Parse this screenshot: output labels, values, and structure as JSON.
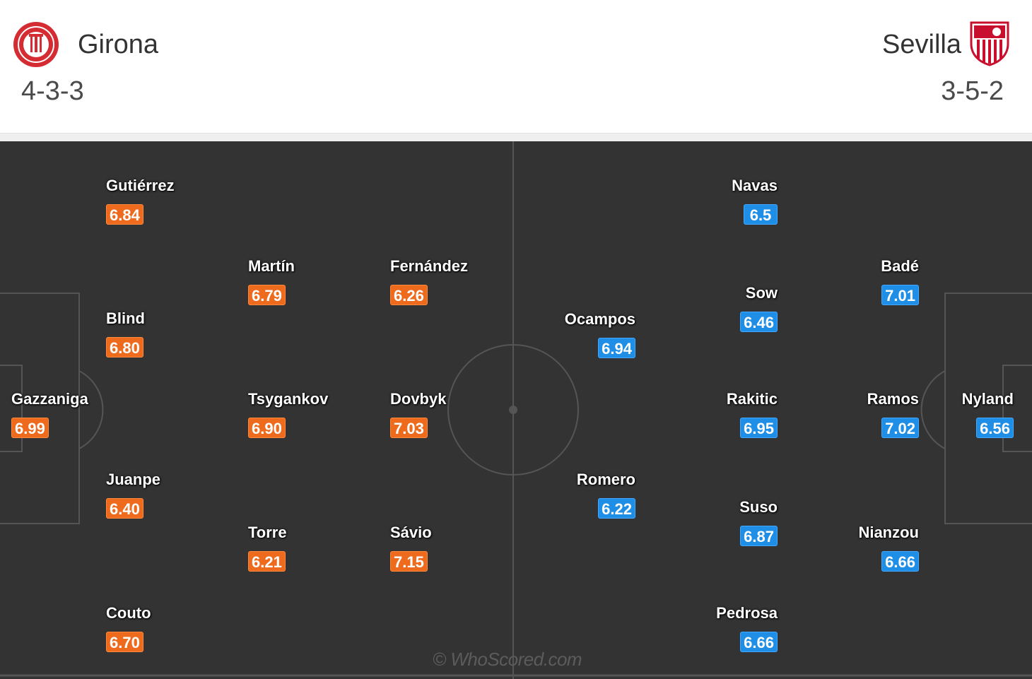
{
  "home": {
    "name": "Girona",
    "formation": "4-3-3",
    "rating_color": "#ee6a1c",
    "crest_icon": "girona-crest",
    "players": [
      {
        "name": "Gutiérrez",
        "rating": "6.84"
      },
      {
        "name": "Martín",
        "rating": "6.79"
      },
      {
        "name": "Fernández",
        "rating": "6.26"
      },
      {
        "name": "Blind",
        "rating": "6.80"
      },
      {
        "name": "Gazzaniga",
        "rating": "6.99"
      },
      {
        "name": "Tsygankov",
        "rating": "6.90"
      },
      {
        "name": "Dovbyk",
        "rating": "7.03"
      },
      {
        "name": "Juanpe",
        "rating": "6.40"
      },
      {
        "name": "Torre",
        "rating": "6.21"
      },
      {
        "name": "Sávio",
        "rating": "7.15"
      },
      {
        "name": "Couto",
        "rating": "6.70"
      }
    ]
  },
  "away": {
    "name": "Sevilla",
    "formation": "3-5-2",
    "rating_color": "#1f8ee6",
    "crest_icon": "sevilla-crest",
    "players": [
      {
        "name": "Navas",
        "rating": "6.5"
      },
      {
        "name": "Badé",
        "rating": "7.01"
      },
      {
        "name": "Sow",
        "rating": "6.46"
      },
      {
        "name": "Ocampos",
        "rating": "6.94"
      },
      {
        "name": "Rakitic",
        "rating": "6.95"
      },
      {
        "name": "Ramos",
        "rating": "7.02"
      },
      {
        "name": "Nyland",
        "rating": "6.56"
      },
      {
        "name": "Romero",
        "rating": "6.22"
      },
      {
        "name": "Suso",
        "rating": "6.87"
      },
      {
        "name": "Nianzou",
        "rating": "6.66"
      },
      {
        "name": "Pedrosa",
        "rating": "6.66"
      }
    ]
  },
  "watermark": "© WhoScored.com",
  "pitch_color": "#333333"
}
